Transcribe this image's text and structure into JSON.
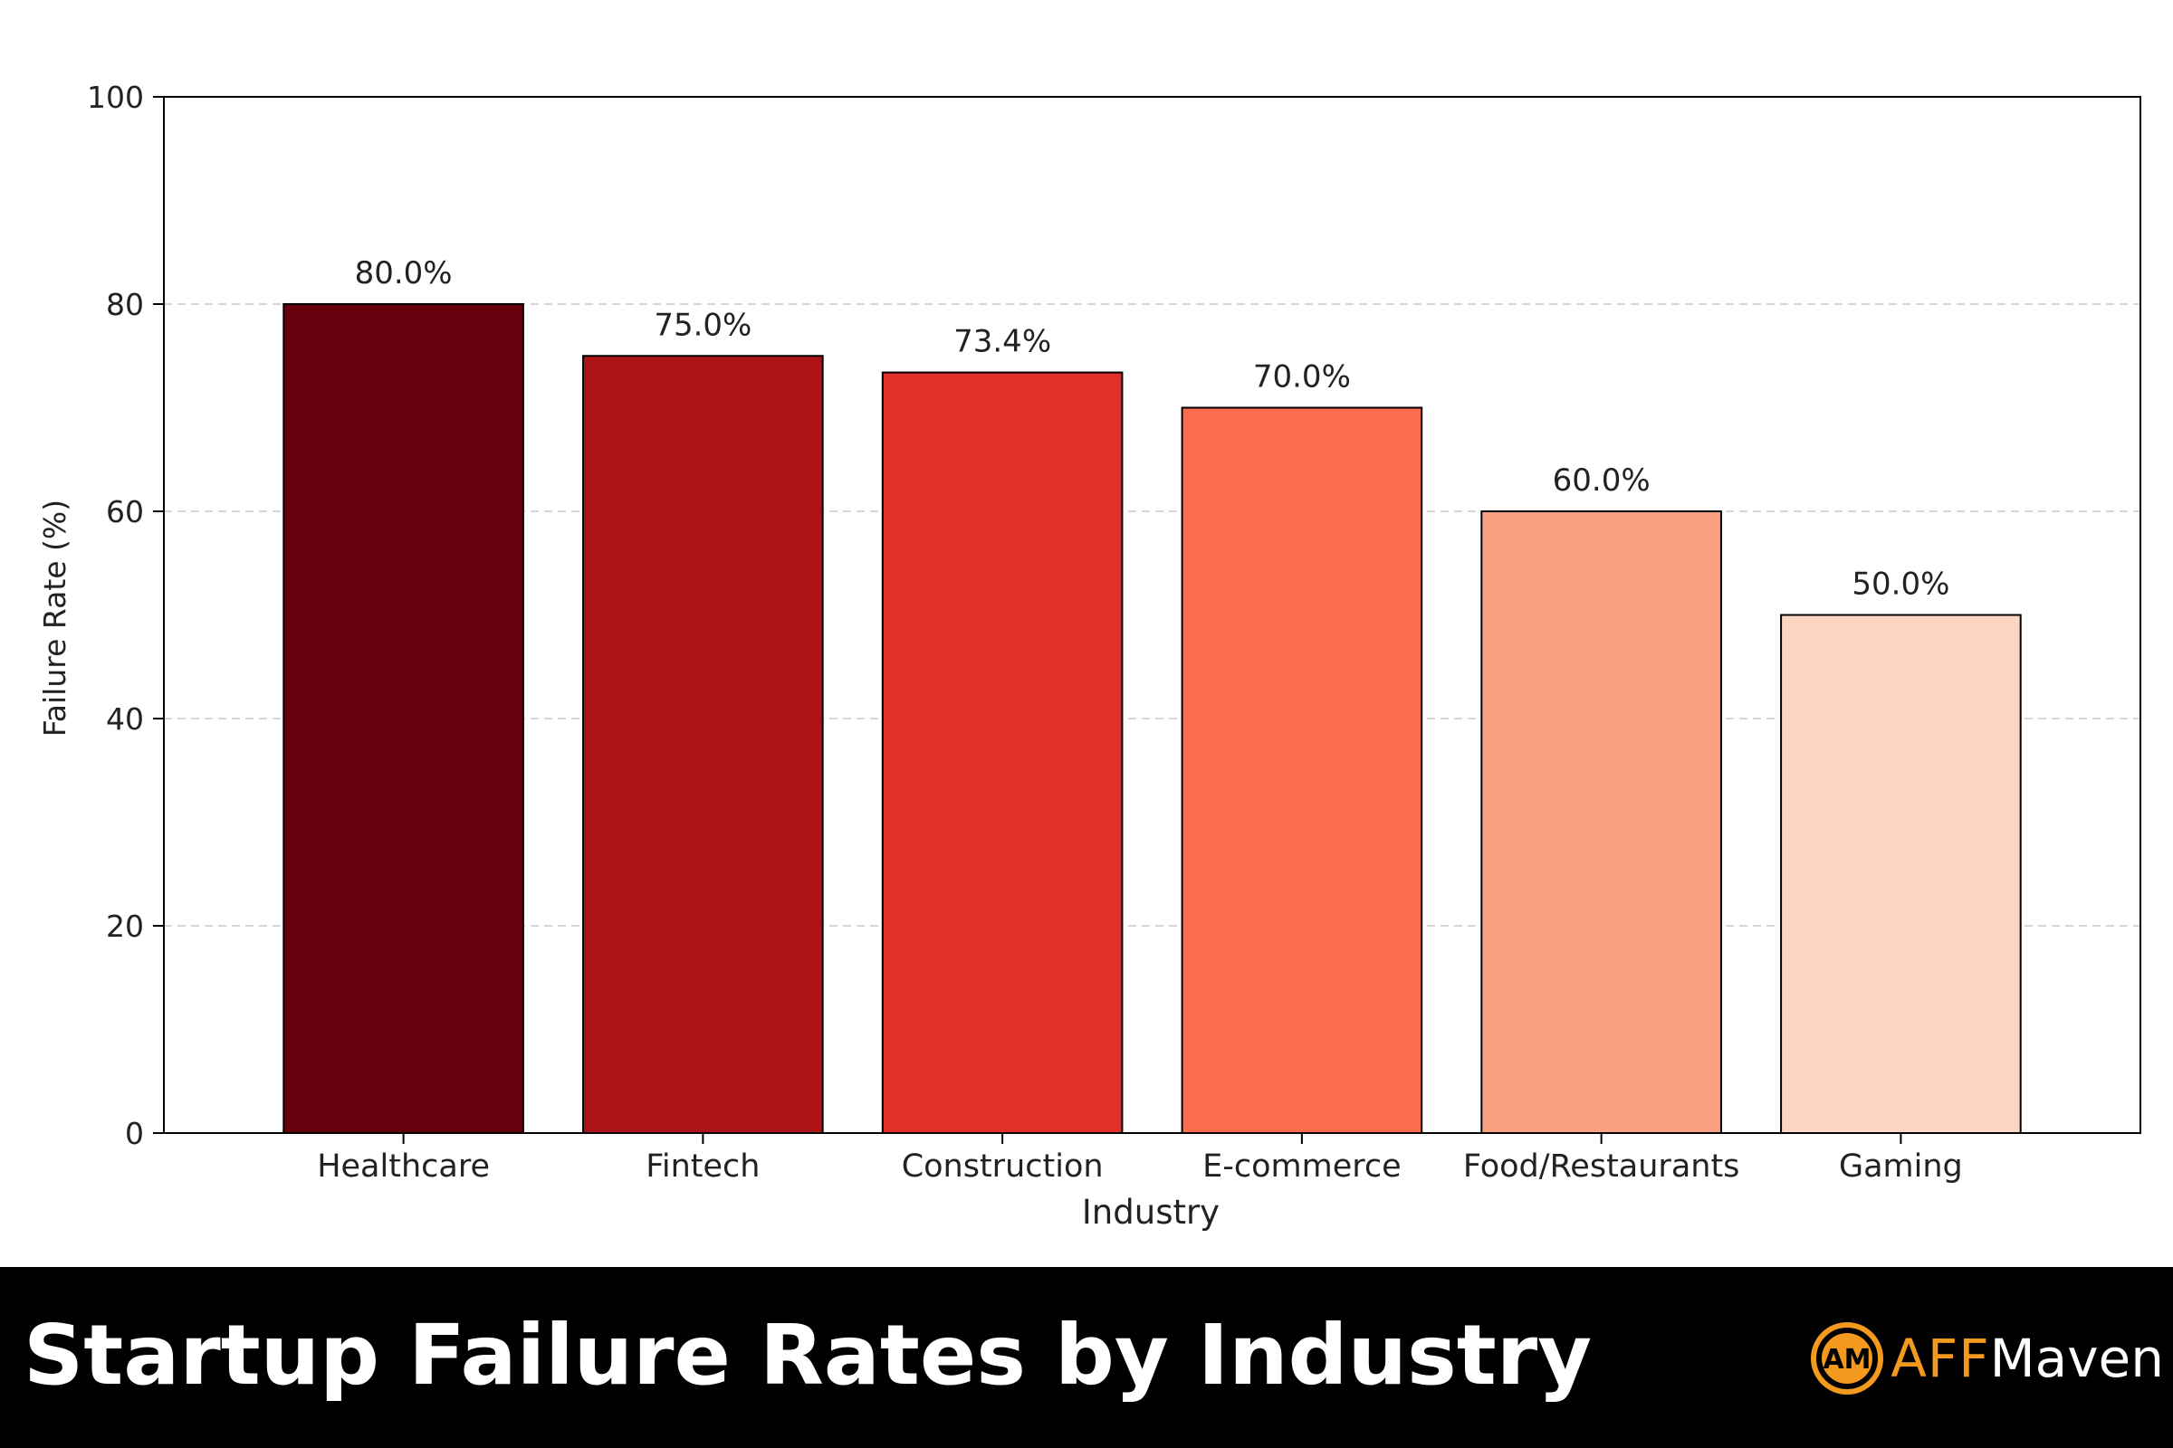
{
  "chart_data": {
    "type": "bar",
    "categories": [
      "Healthcare",
      "Fintech",
      "Construction",
      "E-commerce",
      "Food/Restaurants",
      "Gaming"
    ],
    "values": [
      80.0,
      75.0,
      73.4,
      70.0,
      60.0,
      50.0
    ],
    "value_labels": [
      "80.0%",
      "75.0%",
      "73.4%",
      "70.0%",
      "60.0%",
      "50.0%"
    ],
    "bar_colors": [
      "#67000d",
      "#ae1318",
      "#e1302a",
      "#fc6c4f",
      "#fca082",
      "#fdd5c3"
    ],
    "xlabel": "Industry",
    "ylabel": "Failure Rate (%)",
    "ylim": [
      0,
      100
    ],
    "yticks": [
      0,
      20,
      40,
      60,
      80,
      100
    ],
    "grid": "y-dashed",
    "legend": "none"
  },
  "banner": {
    "title": "Startup Failure Rates by Industry",
    "brand_initials": "AM",
    "brand_aff": "AFF",
    "brand_maven": "Maven",
    "brand_accent_color": "#f39a1e"
  }
}
